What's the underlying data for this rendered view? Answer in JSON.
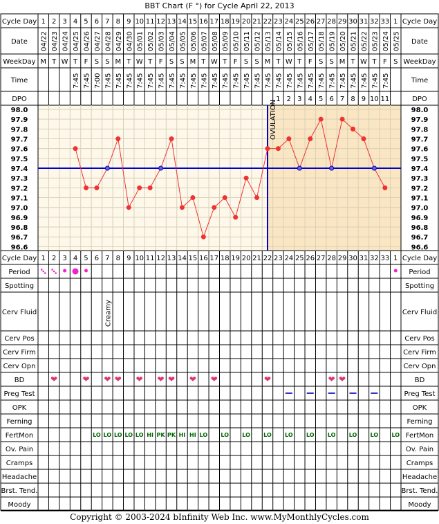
{
  "title": "BBT Chart (F °) for Cycle April 22, 2013",
  "footer": "Copyright © 2003-2024 bInfinity Web Inc.     www.MyMonthlyCycles.com",
  "row_labels": {
    "cycle_day": "Cycle Day",
    "date": "Date",
    "weekday": "WeekDay",
    "time": "Time",
    "dpo": "DPO",
    "period": "Period",
    "spotting": "Spotting",
    "cerv_fluid": "Cerv Fluid",
    "cerv_pos": "Cerv Pos",
    "cerv_firm": "Cerv Firm",
    "cerv_opn": "Cerv Opn",
    "bd": "BD",
    "preg_test": "Preg Test",
    "opk": "OPK",
    "ferning": "Ferning",
    "fertmon": "FertMon",
    "ov_pain": "Ov. Pain",
    "cramps": "Cramps",
    "headache": "Headache",
    "brst_tend": "Brst. Tend.",
    "moody": "Moody"
  },
  "columns": {
    "cycle_days": [
      "1",
      "2",
      "3",
      "4",
      "5",
      "6",
      "7",
      "8",
      "9",
      "10",
      "11",
      "12",
      "13",
      "14",
      "15",
      "16",
      "17",
      "18",
      "19",
      "20",
      "21",
      "22",
      "23",
      "24",
      "25",
      "26",
      "27",
      "28",
      "29",
      "30",
      "31",
      "32",
      "33",
      "1"
    ],
    "dates": [
      "04/22",
      "04/23",
      "04/24",
      "04/25",
      "04/26",
      "04/27",
      "04/28",
      "04/29",
      "04/30",
      "05/01",
      "05/02",
      "05/03",
      "05/04",
      "05/05",
      "05/06",
      "05/07",
      "05/08",
      "05/09",
      "05/10",
      "05/11",
      "05/12",
      "05/13",
      "05/14",
      "05/15",
      "05/16",
      "05/17",
      "05/18",
      "05/19",
      "05/20",
      "05/21",
      "05/22",
      "05/23",
      "05/24",
      "05/25"
    ],
    "weekdays": [
      "M",
      "T",
      "W",
      "T",
      "F",
      "S",
      "S",
      "M",
      "T",
      "W",
      "T",
      "F",
      "S",
      "S",
      "M",
      "T",
      "W",
      "T",
      "F",
      "S",
      "S",
      "M",
      "T",
      "W",
      "T",
      "F",
      "S",
      "S",
      "M",
      "T",
      "W",
      "T",
      "F",
      "S"
    ],
    "times": [
      "",
      "",
      "",
      "7:45",
      "7:45",
      "7:00",
      "7:45",
      "7:45",
      "7:45",
      "7:45",
      "7:45",
      "7:45",
      "7:45",
      "7:45",
      "7:45",
      "7:45",
      "7:45",
      "7:45",
      "7:45",
      "7:45",
      "7:45",
      "7:45",
      "7:45",
      "7:45",
      "7:45",
      "7:45",
      "7:45",
      "7:45",
      "7:45",
      "7:45",
      "7:45",
      "7:45",
      "7:45",
      ""
    ],
    "dpo": [
      "",
      "",
      "",
      "",
      "",
      "",
      "",
      "",
      "",
      "",
      "",
      "",
      "",
      "",
      "",
      "",
      "",
      "",
      "",
      "",
      "",
      "",
      "1",
      "2",
      "3",
      "4",
      "5",
      "6",
      "7",
      "8",
      "9",
      "10",
      "11",
      ""
    ]
  },
  "annotations": {
    "ovulation_text": "OVULATION",
    "cerv_fluid_day7": "Creamy",
    "fertmon": [
      "",
      "",
      "",
      "",
      "",
      "LO",
      "LO",
      "LO",
      "LO",
      "LO",
      "HI",
      "PK",
      "PK",
      "HI",
      "HI",
      "LO",
      "",
      "LO",
      "",
      "LO",
      "",
      "LO",
      "",
      "LO",
      "",
      "LO",
      "",
      "LO",
      "",
      "LO",
      "",
      "LO",
      "",
      "LO"
    ],
    "bd_days": [
      2,
      5,
      7,
      8,
      10,
      12,
      13,
      15,
      17,
      22,
      28,
      29
    ],
    "preg_test_days": [
      24,
      26,
      28,
      30,
      32
    ],
    "period": [
      {
        "day": 1,
        "level": "spotting-light"
      },
      {
        "day": 2,
        "level": "spotting-light"
      },
      {
        "day": 3,
        "level": "light"
      },
      {
        "day": 4,
        "level": "heavy"
      },
      {
        "day": 5,
        "level": "light"
      },
      {
        "day": 34,
        "level": "light"
      }
    ]
  },
  "colors": {
    "pre_ov_bg": "#fdf8ea",
    "post_ov_bg": "#fae6c2",
    "line": "#ee3333",
    "point": "#ee3333",
    "coverline": "#0000cc",
    "heart": "#dd3377",
    "period": "#ee22cc",
    "fertmon": "#006600",
    "preg_test": "#3333cc"
  },
  "chart_data": {
    "type": "line",
    "title": "BBT Chart (F °) for Cycle April 22, 2013",
    "xlabel": "Cycle Day",
    "ylabel": "",
    "ylim": [
      96.6,
      98.0
    ],
    "yticks": [
      "98.0",
      "97.9",
      "97.8",
      "97.7",
      "97.6",
      "97.5",
      "97.4",
      "97.3",
      "97.2",
      "97.1",
      "97.0",
      "96.9",
      "96.8",
      "96.7",
      "96.6"
    ],
    "x": [
      1,
      2,
      3,
      4,
      5,
      6,
      7,
      8,
      9,
      10,
      11,
      12,
      13,
      14,
      15,
      16,
      17,
      18,
      19,
      20,
      21,
      22,
      23,
      24,
      25,
      26,
      27,
      28,
      29,
      30,
      31,
      32,
      33,
      34
    ],
    "series": [
      {
        "name": "",
        "values": [
          null,
          null,
          null,
          97.6,
          97.2,
          97.2,
          97.4,
          97.7,
          97.0,
          97.2,
          97.2,
          97.4,
          97.7,
          97.0,
          97.1,
          96.7,
          97.0,
          97.1,
          96.9,
          97.3,
          97.1,
          97.6,
          97.6,
          97.7,
          97.4,
          97.7,
          97.9,
          97.4,
          97.9,
          97.8,
          97.7,
          97.4,
          97.2,
          null
        ]
      }
    ],
    "coverline": 97.4,
    "ovulation_day": 22,
    "grid": true
  }
}
